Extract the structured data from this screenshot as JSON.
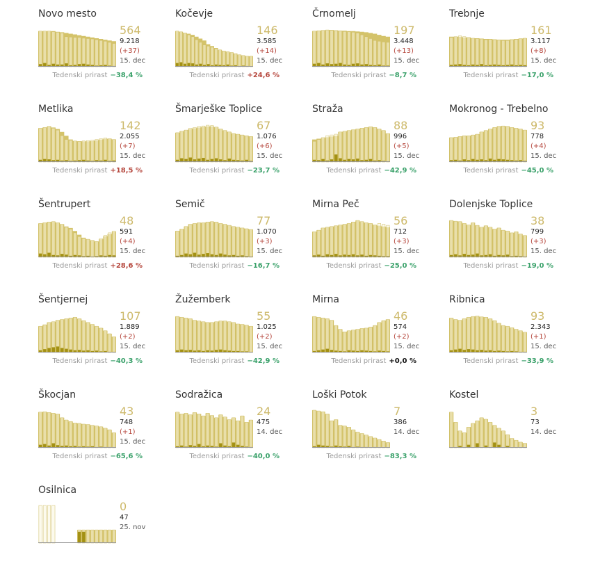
{
  "colors": {
    "area": "#d4c36a",
    "bar": "#faf6df",
    "barStroke": "#cfbd63",
    "newcases": "#a39113",
    "baseline": "#999999",
    "big": "#cdb96a",
    "up": "#b5463c",
    "down": "#3aa16a",
    "zero": "#111111"
  },
  "weekly_label": "Tedenski prirast",
  "chart_data": [
    {
      "type": "bar",
      "name": "Novo mesto",
      "latest": "564",
      "total": "9.218",
      "delta": "(+37)",
      "date": "15. dec",
      "weekly": "−38,4 %",
      "trend": "down",
      "values": [
        95,
        95,
        95,
        93,
        92,
        90,
        80,
        79,
        78,
        78,
        76,
        75,
        74,
        72,
        70,
        68,
        65,
        62
      ],
      "area": [
        95,
        95,
        95,
        95,
        93,
        92,
        90,
        88,
        86,
        84,
        82,
        80,
        78,
        76,
        74,
        72,
        70,
        68
      ],
      "new": [
        7,
        10,
        5,
        8,
        6,
        6,
        9,
        4,
        5,
        7,
        8,
        6,
        5,
        3,
        4,
        5,
        3,
        2
      ]
    },
    {
      "type": "bar",
      "name": "Kočevje",
      "latest": "146",
      "total": "3.585",
      "delta": "(+14)",
      "date": "15. dec",
      "weekly": "+24,6 %",
      "trend": "up",
      "values": [
        95,
        93,
        90,
        85,
        80,
        72,
        65,
        58,
        55,
        52,
        48,
        45,
        42,
        40,
        38,
        35,
        32,
        30,
        28,
        28
      ],
      "area": [
        95,
        93,
        90,
        88,
        85,
        80,
        75,
        70,
        60,
        55,
        50,
        45,
        42,
        40,
        38,
        35,
        32,
        30,
        28,
        28
      ],
      "new": [
        10,
        12,
        8,
        10,
        9,
        6,
        8,
        5,
        7,
        4,
        6,
        5,
        4,
        6,
        3,
        4,
        2,
        3,
        2,
        1
      ]
    },
    {
      "type": "bar",
      "name": "Črnomelj",
      "latest": "197",
      "total": "3.448",
      "delta": "(+13)",
      "date": "15. dec",
      "weekly": "−8,7 %",
      "trend": "down",
      "values": [
        95,
        96,
        97,
        98,
        97,
        96,
        95,
        94,
        93,
        92,
        90,
        85,
        80,
        75,
        70,
        68,
        66,
        65
      ],
      "area": [
        95,
        96,
        97,
        98,
        98,
        97,
        96,
        96,
        95,
        95,
        94,
        93,
        92,
        90,
        88,
        85,
        82,
        80
      ],
      "new": [
        8,
        10,
        6,
        9,
        7,
        8,
        10,
        6,
        5,
        8,
        9,
        6,
        7,
        5,
        4,
        6,
        3,
        3
      ]
    },
    {
      "type": "bar",
      "name": "Trebnje",
      "latest": "161",
      "total": "3.117",
      "delta": "(+8)",
      "date": "15. dec",
      "weekly": "−17,0 %",
      "trend": "down",
      "values": [
        78,
        80,
        82,
        80,
        78,
        76,
        75,
        74,
        72,
        73,
        72,
        71,
        70,
        70,
        72,
        73,
        75,
        76
      ],
      "area": [
        80,
        80,
        80,
        78,
        78,
        76,
        76,
        75,
        74,
        74,
        73,
        72,
        72,
        72,
        73,
        74,
        75,
        76
      ],
      "new": [
        5,
        6,
        7,
        5,
        4,
        6,
        5,
        7,
        4,
        5,
        6,
        5,
        4,
        5,
        6,
        4,
        5,
        4
      ]
    },
    {
      "type": "bar",
      "name": "Metlika",
      "latest": "142",
      "total": "2.055",
      "delta": "(+7)",
      "date": "15. dec",
      "weekly": "+18,5 %",
      "trend": "up",
      "values": [
        90,
        92,
        95,
        90,
        85,
        70,
        60,
        58,
        56,
        55,
        56,
        57,
        58,
        60,
        62,
        64,
        62,
        60
      ],
      "area": [
        90,
        92,
        95,
        92,
        88,
        80,
        70,
        60,
        56,
        55,
        55,
        55,
        56,
        58,
        60,
        62,
        62,
        60
      ],
      "new": [
        6,
        8,
        7,
        5,
        6,
        4,
        5,
        3,
        4,
        5,
        6,
        4,
        3,
        5,
        4,
        6,
        3,
        4
      ]
    },
    {
      "type": "bar",
      "name": "Šmarješke Toplice",
      "latest": "67",
      "total": "1.076",
      "delta": "(+6)",
      "date": "15. dec",
      "weekly": "−23,7 %",
      "trend": "down",
      "values": [
        78,
        82,
        85,
        90,
        92,
        95,
        96,
        98,
        97,
        93,
        88,
        84,
        80,
        76,
        74,
        72,
        70,
        68
      ],
      "area": [
        78,
        82,
        85,
        88,
        90,
        92,
        94,
        95,
        95,
        93,
        88,
        84,
        80,
        76,
        74,
        72,
        70,
        68
      ],
      "new": [
        6,
        10,
        8,
        12,
        7,
        9,
        11,
        6,
        8,
        10,
        7,
        5,
        9,
        6,
        5,
        4,
        6,
        3
      ]
    },
    {
      "type": "bar",
      "name": "Straža",
      "latest": "88",
      "total": "996",
      "delta": "(+5)",
      "date": "15. dec",
      "weekly": "−42,9 %",
      "trend": "down",
      "values": [
        55,
        60,
        65,
        70,
        72,
        74,
        80,
        82,
        84,
        86,
        88,
        90,
        92,
        94,
        92,
        88,
        84,
        76
      ],
      "area": [
        60,
        62,
        64,
        66,
        68,
        70,
        80,
        82,
        84,
        86,
        88,
        90,
        92,
        94,
        92,
        88,
        84,
        76
      ],
      "new": [
        6,
        5,
        8,
        4,
        7,
        20,
        10,
        6,
        8,
        7,
        9,
        5,
        6,
        8,
        4,
        5,
        3,
        2
      ]
    },
    {
      "type": "bar",
      "name": "Mokronog - Trebelno",
      "latest": "93",
      "total": "778",
      "delta": "(+4)",
      "date": "15. dec",
      "weekly": "−45,0 %",
      "trend": "down",
      "values": [
        65,
        66,
        68,
        70,
        70,
        72,
        74,
        80,
        84,
        88,
        92,
        95,
        96,
        95,
        92,
        90,
        88,
        85
      ],
      "area": [
        65,
        66,
        68,
        70,
        70,
        72,
        74,
        80,
        84,
        88,
        92,
        95,
        96,
        95,
        92,
        90,
        88,
        85
      ],
      "new": [
        5,
        6,
        4,
        7,
        5,
        8,
        6,
        7,
        5,
        9,
        6,
        8,
        7,
        6,
        5,
        4,
        5,
        3
      ]
    },
    {
      "type": "bar",
      "name": "Šentrupert",
      "latest": "48",
      "total": "591",
      "delta": "(+4)",
      "date": "15. dec",
      "weekly": "+28,6 %",
      "trend": "up",
      "values": [
        90,
        92,
        94,
        95,
        92,
        88,
        80,
        75,
        65,
        55,
        50,
        48,
        45,
        42,
        50,
        58,
        65,
        70
      ],
      "area": [
        90,
        92,
        94,
        95,
        92,
        88,
        82,
        78,
        70,
        60,
        52,
        48,
        45,
        42,
        48,
        56,
        62,
        68
      ],
      "new": [
        10,
        8,
        12,
        6,
        5,
        9,
        7,
        4,
        6,
        5,
        3,
        4,
        2,
        3,
        5,
        4,
        6,
        5
      ]
    },
    {
      "type": "bar",
      "name": "Semič",
      "latest": "77",
      "total": "1.070",
      "delta": "(+3)",
      "date": "15. dec",
      "weekly": "−16,7 %",
      "trend": "down",
      "values": [
        70,
        75,
        82,
        88,
        90,
        92,
        92,
        94,
        95,
        94,
        90,
        88,
        85,
        82,
        80,
        78,
        76,
        74
      ],
      "area": [
        70,
        75,
        82,
        88,
        90,
        92,
        92,
        94,
        95,
        94,
        90,
        88,
        85,
        82,
        80,
        78,
        76,
        74
      ],
      "new": [
        4,
        6,
        10,
        8,
        12,
        7,
        9,
        11,
        8,
        6,
        10,
        7,
        5,
        6,
        4,
        5,
        3,
        2
      ]
    },
    {
      "type": "bar",
      "name": "Mirna Peč",
      "latest": "56",
      "total": "712",
      "delta": "(+3)",
      "date": "15. dec",
      "weekly": "−25,0 %",
      "trend": "down",
      "values": [
        68,
        72,
        78,
        80,
        82,
        84,
        86,
        88,
        90,
        94,
        98,
        95,
        92,
        90,
        86,
        90,
        88,
        85
      ],
      "area": [
        68,
        72,
        78,
        80,
        82,
        84,
        86,
        88,
        90,
        94,
        98,
        95,
        92,
        90,
        86,
        84,
        82,
        80
      ],
      "new": [
        5,
        7,
        4,
        8,
        6,
        9,
        5,
        7,
        6,
        8,
        5,
        7,
        4,
        6,
        5,
        4,
        3,
        3
      ]
    },
    {
      "type": "bar",
      "name": "Dolenjske Toplice",
      "latest": "38",
      "total": "799",
      "delta": "(+3)",
      "date": "15. dec",
      "weekly": "−19,0 %",
      "trend": "down",
      "values": [
        98,
        96,
        95,
        90,
        86,
        92,
        85,
        80,
        84,
        80,
        75,
        78,
        72,
        70,
        65,
        68,
        62,
        58
      ],
      "area": [
        98,
        96,
        95,
        90,
        86,
        92,
        85,
        80,
        84,
        80,
        75,
        78,
        72,
        70,
        65,
        68,
        62,
        58
      ],
      "new": [
        6,
        8,
        5,
        9,
        6,
        7,
        10,
        5,
        6,
        8,
        4,
        6,
        5,
        7,
        3,
        4,
        3,
        2
      ]
    },
    {
      "type": "bar",
      "name": "Šentjernej",
      "latest": "107",
      "total": "1.889",
      "delta": "(+2)",
      "date": "15. dec",
      "weekly": "−40,3 %",
      "trend": "down",
      "values": [
        70,
        74,
        80,
        82,
        86,
        88,
        90,
        92,
        94,
        90,
        85,
        80,
        75,
        70,
        65,
        58,
        50,
        42
      ],
      "area": [
        70,
        74,
        80,
        82,
        86,
        88,
        90,
        92,
        94,
        90,
        85,
        80,
        75,
        70,
        65,
        58,
        50,
        42
      ],
      "new": [
        6,
        9,
        12,
        14,
        16,
        12,
        10,
        8,
        6,
        7,
        5,
        6,
        4,
        5,
        3,
        4,
        2,
        2
      ]
    },
    {
      "type": "bar",
      "name": "Žužemberk",
      "latest": "55",
      "total": "1.025",
      "delta": "(+2)",
      "date": "15. dec",
      "weekly": "−42,9 %",
      "trend": "down",
      "values": [
        96,
        94,
        92,
        90,
        86,
        84,
        82,
        80,
        80,
        82,
        84,
        84,
        82,
        80,
        76,
        75,
        73,
        70
      ],
      "area": [
        96,
        94,
        92,
        90,
        86,
        84,
        82,
        80,
        80,
        82,
        84,
        84,
        82,
        80,
        76,
        75,
        73,
        70
      ],
      "new": [
        6,
        8,
        6,
        7,
        5,
        6,
        4,
        6,
        5,
        7,
        8,
        6,
        5,
        4,
        4,
        3,
        3,
        2
      ]
    },
    {
      "type": "bar",
      "name": "Mirna",
      "latest": "46",
      "total": "574",
      "delta": "(+2)",
      "date": "15. dec",
      "weekly": "+0,0 %",
      "trend": "zero",
      "values": [
        96,
        94,
        92,
        90,
        86,
        72,
        62,
        55,
        58,
        60,
        62,
        64,
        65,
        68,
        72,
        80,
        85,
        88
      ],
      "area": [
        96,
        94,
        92,
        90,
        86,
        72,
        62,
        55,
        58,
        60,
        62,
        64,
        65,
        68,
        72,
        80,
        85,
        88
      ],
      "new": [
        4,
        6,
        8,
        10,
        7,
        5,
        4,
        3,
        6,
        5,
        4,
        6,
        5,
        4,
        3,
        5,
        4,
        3
      ]
    },
    {
      "type": "bar",
      "name": "Ribnica",
      "latest": "93",
      "total": "2.343",
      "delta": "(+1)",
      "date": "15. dec",
      "weekly": "−33,9 %",
      "trend": "down",
      "values": [
        92,
        88,
        86,
        90,
        94,
        96,
        97,
        95,
        94,
        90,
        85,
        78,
        72,
        70,
        66,
        62,
        58,
        54
      ],
      "area": [
        92,
        88,
        86,
        90,
        94,
        96,
        97,
        95,
        94,
        90,
        85,
        78,
        72,
        70,
        66,
        62,
        58,
        54
      ],
      "new": [
        6,
        8,
        10,
        7,
        9,
        8,
        6,
        7,
        5,
        6,
        4,
        5,
        4,
        3,
        4,
        3,
        2,
        2
      ]
    },
    {
      "type": "bar",
      "name": "Škocjan",
      "latest": "43",
      "total": "748",
      "delta": "(+1)",
      "date": "15. dec",
      "weekly": "−65,6 %",
      "trend": "down",
      "values": [
        95,
        96,
        94,
        92,
        90,
        80,
        74,
        70,
        66,
        65,
        63,
        62,
        60,
        58,
        56,
        52,
        48,
        40
      ],
      "area": [
        95,
        96,
        94,
        92,
        90,
        80,
        74,
        70,
        66,
        65,
        63,
        62,
        60,
        58,
        56,
        52,
        48,
        40
      ],
      "new": [
        8,
        10,
        6,
        12,
        7,
        5,
        6,
        4,
        5,
        3,
        4,
        3,
        4,
        2,
        3,
        2,
        2,
        1
      ]
    },
    {
      "type": "bar",
      "name": "Sodražica",
      "latest": "24",
      "total": "475",
      "delta": "",
      "date": "14. dec",
      "weekly": "−40,0 %",
      "trend": "down",
      "values": [
        95,
        90,
        92,
        88,
        94,
        90,
        85,
        92,
        86,
        80,
        88,
        82,
        75,
        80,
        72,
        85,
        68,
        74
      ],
      "area": [
        95,
        90,
        92,
        88,
        94,
        90,
        85,
        92,
        86,
        80,
        88,
        82,
        75,
        80,
        72,
        85,
        68,
        74
      ],
      "new": [
        4,
        6,
        3,
        7,
        5,
        10,
        4,
        6,
        5,
        3,
        12,
        6,
        4,
        14,
        8,
        5,
        3,
        2
      ]
    },
    {
      "type": "bar",
      "name": "Loški Potok",
      "latest": "7",
      "total": "386",
      "delta": "",
      "date": "14. dec",
      "weekly": "−83,3 %",
      "trend": "down",
      "values": [
        100,
        98,
        96,
        90,
        72,
        75,
        60,
        58,
        55,
        48,
        42,
        38,
        34,
        30,
        26,
        22,
        18,
        14
      ],
      "area": [
        100,
        98,
        96,
        90,
        72,
        75,
        60,
        58,
        55,
        48,
        42,
        38,
        34,
        30,
        26,
        22,
        18,
        14
      ],
      "new": [
        4,
        8,
        6,
        5,
        3,
        6,
        4,
        3,
        5,
        2,
        3,
        2,
        2,
        1,
        2,
        1,
        1,
        1
      ]
    },
    {
      "type": "bar",
      "name": "Kostel",
      "latest": "3",
      "total": "73",
      "delta": "",
      "date": "14. dec",
      "weekly": "",
      "trend": "down",
      "values": [
        95,
        68,
        45,
        40,
        55,
        65,
        72,
        80,
        76,
        68,
        60,
        52,
        45,
        35,
        25,
        20,
        15,
        12
      ],
      "area": [
        95,
        68,
        45,
        40,
        55,
        65,
        72,
        80,
        76,
        68,
        60,
        52,
        45,
        35,
        25,
        20,
        15,
        12
      ],
      "new": [
        0,
        0,
        5,
        0,
        8,
        0,
        12,
        0,
        6,
        0,
        14,
        8,
        0,
        5,
        0,
        0,
        0,
        0
      ]
    },
    {
      "type": "bar",
      "name": "Osilnica",
      "latest": "0",
      "total": "47",
      "delta": "",
      "date": "25. nov",
      "weekly": "",
      "trend": "zero",
      "values": [
        100,
        100,
        100,
        100,
        0,
        0,
        0,
        0,
        0,
        35,
        35,
        35,
        35,
        35,
        35,
        35,
        35,
        35
      ],
      "area": [
        0,
        0,
        0,
        0,
        0,
        0,
        0,
        0,
        0,
        35,
        35,
        35,
        35,
        35,
        35,
        35,
        35,
        35
      ],
      "new": [
        0,
        0,
        0,
        0,
        0,
        0,
        0,
        0,
        0,
        30,
        30,
        0,
        0,
        0,
        0,
        0,
        0,
        0
      ]
    }
  ]
}
